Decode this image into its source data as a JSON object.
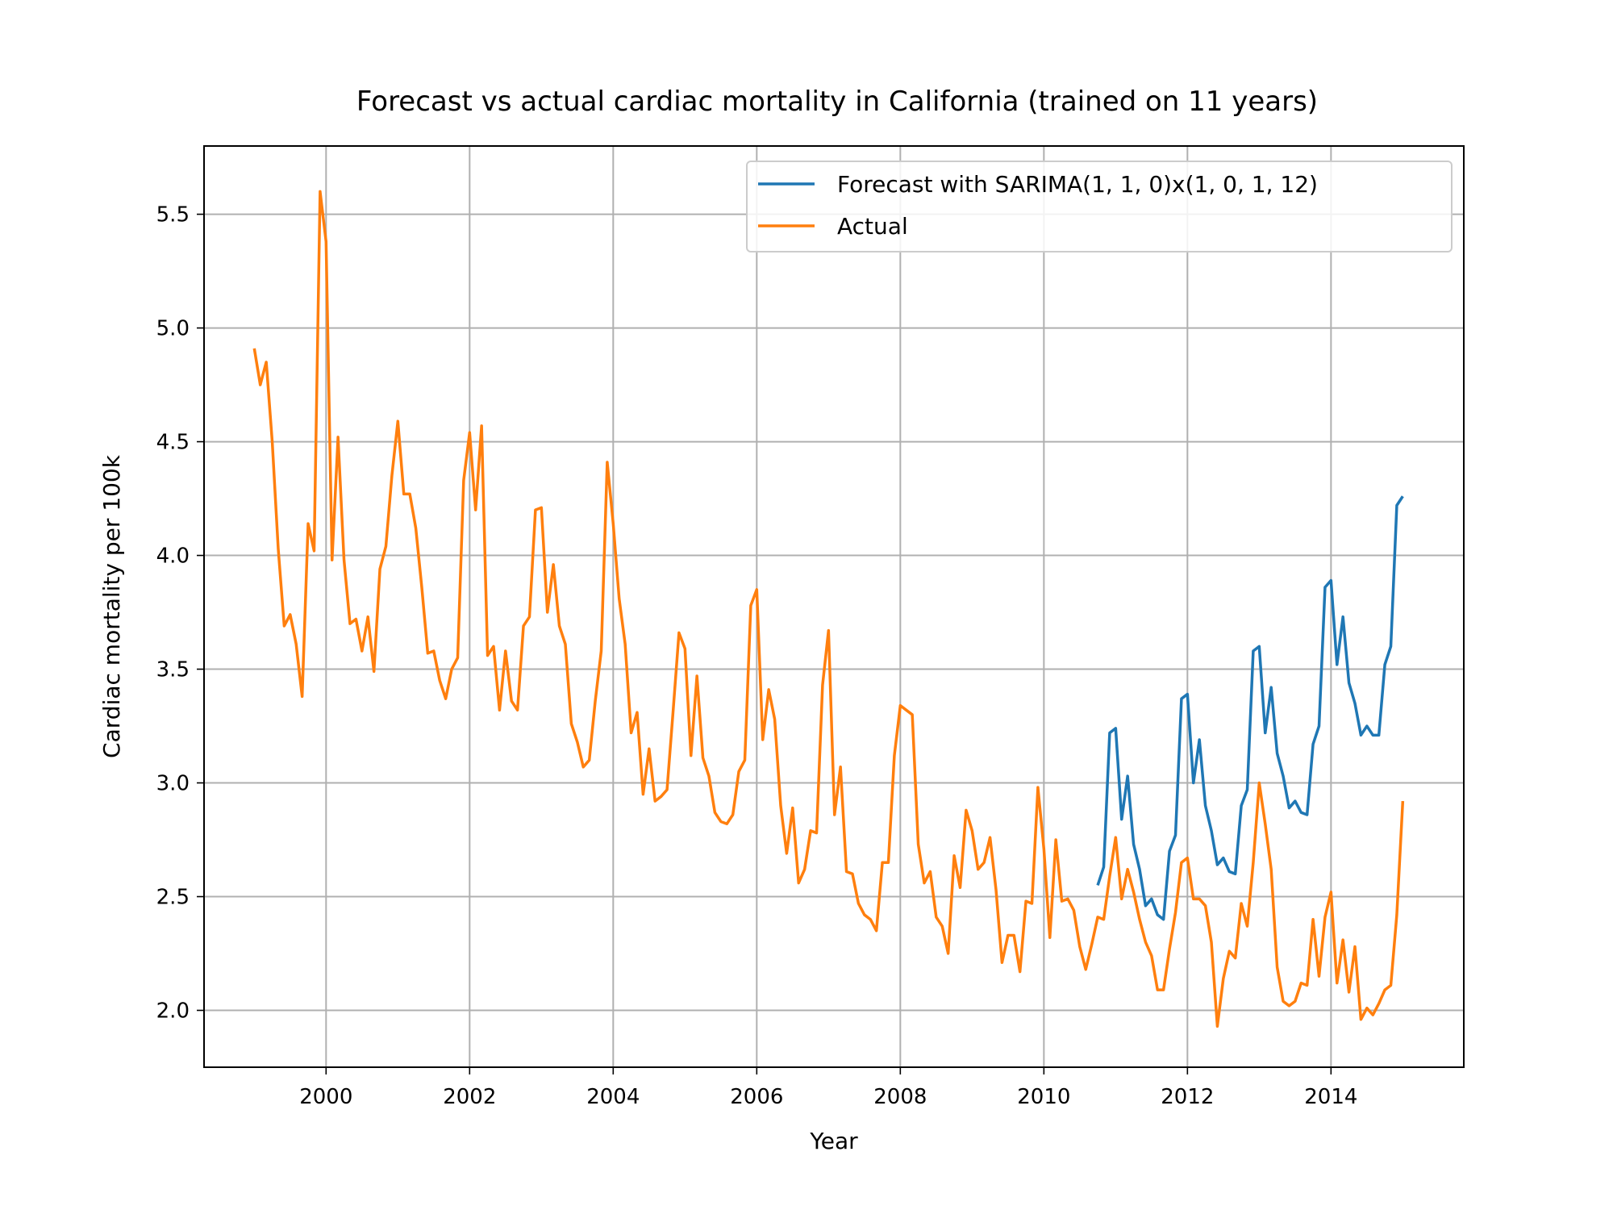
{
  "chart_data": {
    "type": "line",
    "title": "Forecast vs actual cardiac mortality in California (trained on 11 years)",
    "xlabel": "Year",
    "ylabel": "Cardiac mortality per 100k",
    "xlim": [
      1998.3,
      2015.85
    ],
    "ylim": [
      1.75,
      5.8
    ],
    "xticks": [
      2000,
      2002,
      2004,
      2006,
      2008,
      2010,
      2012,
      2014
    ],
    "xtick_labels": [
      "2000",
      "2002",
      "2004",
      "2006",
      "2008",
      "2010",
      "2012",
      "2014"
    ],
    "yticks": [
      2.0,
      2.5,
      3.0,
      3.5,
      4.0,
      4.5,
      5.0,
      5.5
    ],
    "ytick_labels": [
      "2.0",
      "2.5",
      "3.0",
      "3.5",
      "4.0",
      "4.5",
      "5.0",
      "5.5"
    ],
    "grid": true,
    "legend_position": "top-right",
    "series": [
      {
        "name": "Forecast with SARIMA(1, 1, 0)x(1, 0, 1, 12)",
        "color": "#1f77b4",
        "start": [
          2010,
          10
        ],
        "values": [
          2.55,
          2.63,
          3.22,
          3.24,
          2.84,
          3.03,
          2.73,
          2.62,
          2.46,
          2.49,
          2.42,
          2.4,
          2.7,
          2.77,
          3.37,
          3.39,
          3.0,
          3.19,
          2.9,
          2.79,
          2.64,
          2.67,
          2.61,
          2.6,
          2.9,
          2.97,
          3.58,
          3.6,
          3.22,
          3.42,
          3.13,
          3.03,
          2.89,
          2.92,
          2.87,
          2.86,
          3.17,
          3.25,
          3.86,
          3.89,
          3.52,
          3.73,
          3.44,
          3.35,
          3.21,
          3.25,
          3.21,
          3.21,
          3.52,
          3.6,
          4.22,
          4.26
        ]
      },
      {
        "name": "Actual",
        "color": "#ff7f0e",
        "start": [
          1999,
          1
        ],
        "values": [
          4.91,
          4.75,
          4.85,
          4.5,
          4.03,
          3.69,
          3.74,
          3.61,
          3.38,
          4.14,
          4.02,
          5.6,
          5.38,
          3.98,
          4.52,
          3.98,
          3.7,
          3.72,
          3.58,
          3.73,
          3.49,
          3.94,
          4.04,
          4.35,
          4.59,
          4.27,
          4.27,
          4.12,
          3.86,
          3.57,
          3.58,
          3.45,
          3.37,
          3.5,
          3.55,
          4.33,
          4.54,
          4.2,
          4.57,
          3.56,
          3.6,
          3.32,
          3.58,
          3.36,
          3.32,
          3.69,
          3.73,
          4.2,
          4.21,
          3.75,
          3.96,
          3.69,
          3.61,
          3.26,
          3.18,
          3.07,
          3.1,
          3.36,
          3.58,
          4.41,
          4.14,
          3.81,
          3.61,
          3.22,
          3.31,
          2.95,
          3.15,
          2.92,
          2.94,
          2.97,
          3.31,
          3.66,
          3.59,
          3.12,
          3.47,
          3.11,
          3.03,
          2.87,
          2.83,
          2.82,
          2.86,
          3.05,
          3.1,
          3.78,
          3.85,
          3.19,
          3.41,
          3.28,
          2.9,
          2.69,
          2.89,
          2.56,
          2.62,
          2.79,
          2.78,
          3.43,
          3.67,
          2.86,
          3.07,
          2.61,
          2.6,
          2.47,
          2.42,
          2.4,
          2.35,
          2.65,
          2.65,
          3.12,
          3.34,
          3.32,
          3.3,
          2.73,
          2.56,
          2.61,
          2.41,
          2.37,
          2.25,
          2.68,
          2.54,
          2.88,
          2.79,
          2.62,
          2.65,
          2.76,
          2.53,
          2.21,
          2.33,
          2.33,
          2.17,
          2.48,
          2.47,
          2.98,
          2.71,
          2.32,
          2.75,
          2.48,
          2.49,
          2.44,
          2.28,
          2.18,
          2.29,
          2.41,
          2.4,
          2.59,
          2.76,
          2.49,
          2.62,
          2.52,
          2.4,
          2.3,
          2.24,
          2.09,
          2.09,
          2.27,
          2.43,
          2.65,
          2.67,
          2.49,
          2.49,
          2.46,
          2.3,
          1.93,
          2.14,
          2.26,
          2.23,
          2.47,
          2.37,
          2.65,
          3.0,
          2.82,
          2.62,
          2.19,
          2.04,
          2.02,
          2.04,
          2.12,
          2.11,
          2.4,
          2.15,
          2.41,
          2.52,
          2.12,
          2.31,
          2.08,
          2.28,
          1.96,
          2.01,
          1.98,
          2.03,
          2.09,
          2.11,
          2.42,
          2.92
        ]
      }
    ]
  }
}
